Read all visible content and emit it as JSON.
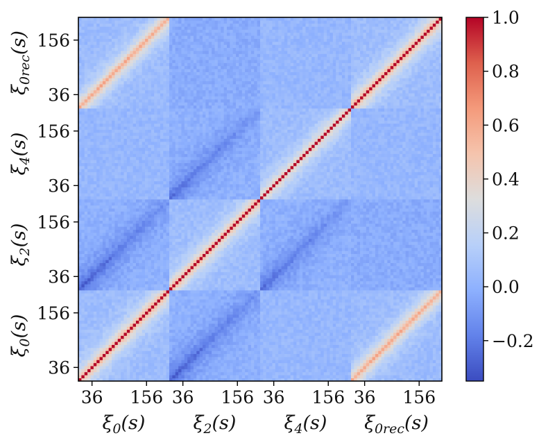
{
  "chart_data": {
    "type": "heatmap",
    "title": "",
    "description_of_structure": "",
    "blocks": [
      {
        "name": "ξ0(s)",
        "sub": "0",
        "tick_labels": [
          "36",
          "156"
        ]
      },
      {
        "name": "ξ2(s)",
        "sub": "2",
        "tick_labels": [
          "36",
          "156"
        ]
      },
      {
        "name": "ξ4(s)",
        "sub": "4",
        "tick_labels": [
          "36",
          "156"
        ]
      },
      {
        "name": "ξ0rec(s)",
        "sub": "0rec",
        "tick_labels": [
          "36",
          "156"
        ]
      }
    ],
    "bins_per_block": 30,
    "colorbar": {
      "colormap": "coolwarm",
      "vmin": -0.35,
      "vmax": 1.0,
      "ticks": [
        {
          "value": 1.0,
          "label": "1.0"
        },
        {
          "value": 0.8,
          "label": "0.8"
        },
        {
          "value": 0.6,
          "label": "0.6"
        },
        {
          "value": 0.4,
          "label": "0.4"
        },
        {
          "value": 0.2,
          "label": "0.2"
        },
        {
          "value": 0.0,
          "label": "0.0"
        },
        {
          "value": -0.2,
          "label": "−0.2"
        }
      ]
    },
    "block_correlation": [
      [
        {
          "kind": "auto",
          "peak": 0.6
        },
        {
          "kind": "anti",
          "peak": -0.3
        },
        {
          "kind": "flat",
          "peak": 0.05
        },
        {
          "kind": "diag",
          "peak": 0.55
        }
      ],
      [
        {
          "kind": "anti",
          "peak": -0.3
        },
        {
          "kind": "auto",
          "peak": 0.55
        },
        {
          "kind": "anti",
          "peak": -0.25
        },
        {
          "kind": "flat",
          "peak": -0.05
        }
      ],
      [
        {
          "kind": "flat",
          "peak": 0.05
        },
        {
          "kind": "anti",
          "peak": -0.25
        },
        {
          "kind": "auto",
          "peak": 0.45
        },
        {
          "kind": "flat",
          "peak": 0.05
        }
      ],
      [
        {
          "kind": "diag",
          "peak": 0.55
        },
        {
          "kind": "flat",
          "peak": -0.05
        },
        {
          "kind": "flat",
          "peak": 0.05
        },
        {
          "kind": "auto",
          "peak": 0.6
        }
      ]
    ]
  }
}
